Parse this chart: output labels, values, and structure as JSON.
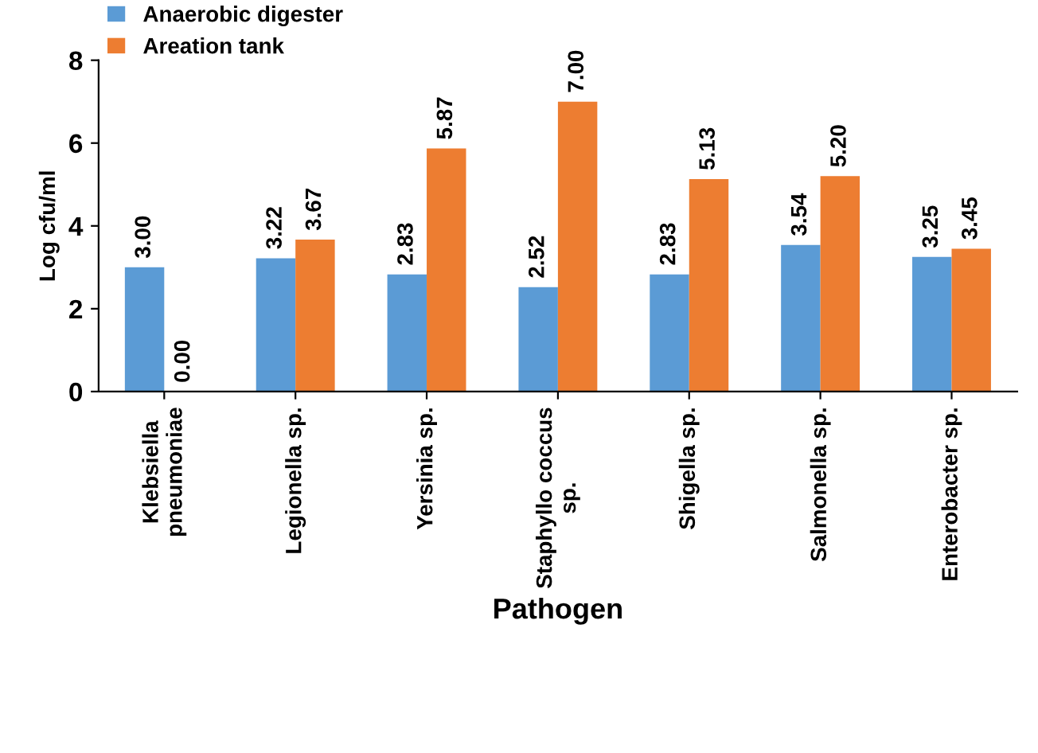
{
  "chart_data": {
    "type": "bar",
    "xlabel": "Pathogen",
    "ylabel": "Log cfu/ml",
    "categories": [
      "Klebsiella\npneumoniae",
      "Legionella sp.",
      "Yersinia sp.",
      "Staphyllo coccus\nsp.",
      "Shigella sp.",
      "Salmonella sp.",
      "Enterobacter sp."
    ],
    "series": [
      {
        "name": "Anaerobic digester",
        "color": "#5b9bd5",
        "values": [
          3.0,
          3.22,
          2.83,
          2.52,
          2.83,
          3.54,
          3.25
        ],
        "value_labels": [
          "3.00",
          "3.22",
          "2.83",
          "2.52",
          "2.83",
          "3.54",
          "3.25"
        ]
      },
      {
        "name": "Areation tank",
        "color": "#ed7d31",
        "values": [
          0.0,
          3.67,
          5.87,
          7.0,
          5.13,
          5.2,
          3.45
        ],
        "value_labels": [
          "0.00",
          "3.67",
          "5.87",
          "7.00",
          "5.13",
          "5.20",
          "3.45"
        ]
      }
    ],
    "ylim": [
      0,
      8
    ],
    "yticks": [
      0,
      2,
      4,
      6,
      8
    ],
    "grid": false,
    "legend": "top left"
  }
}
